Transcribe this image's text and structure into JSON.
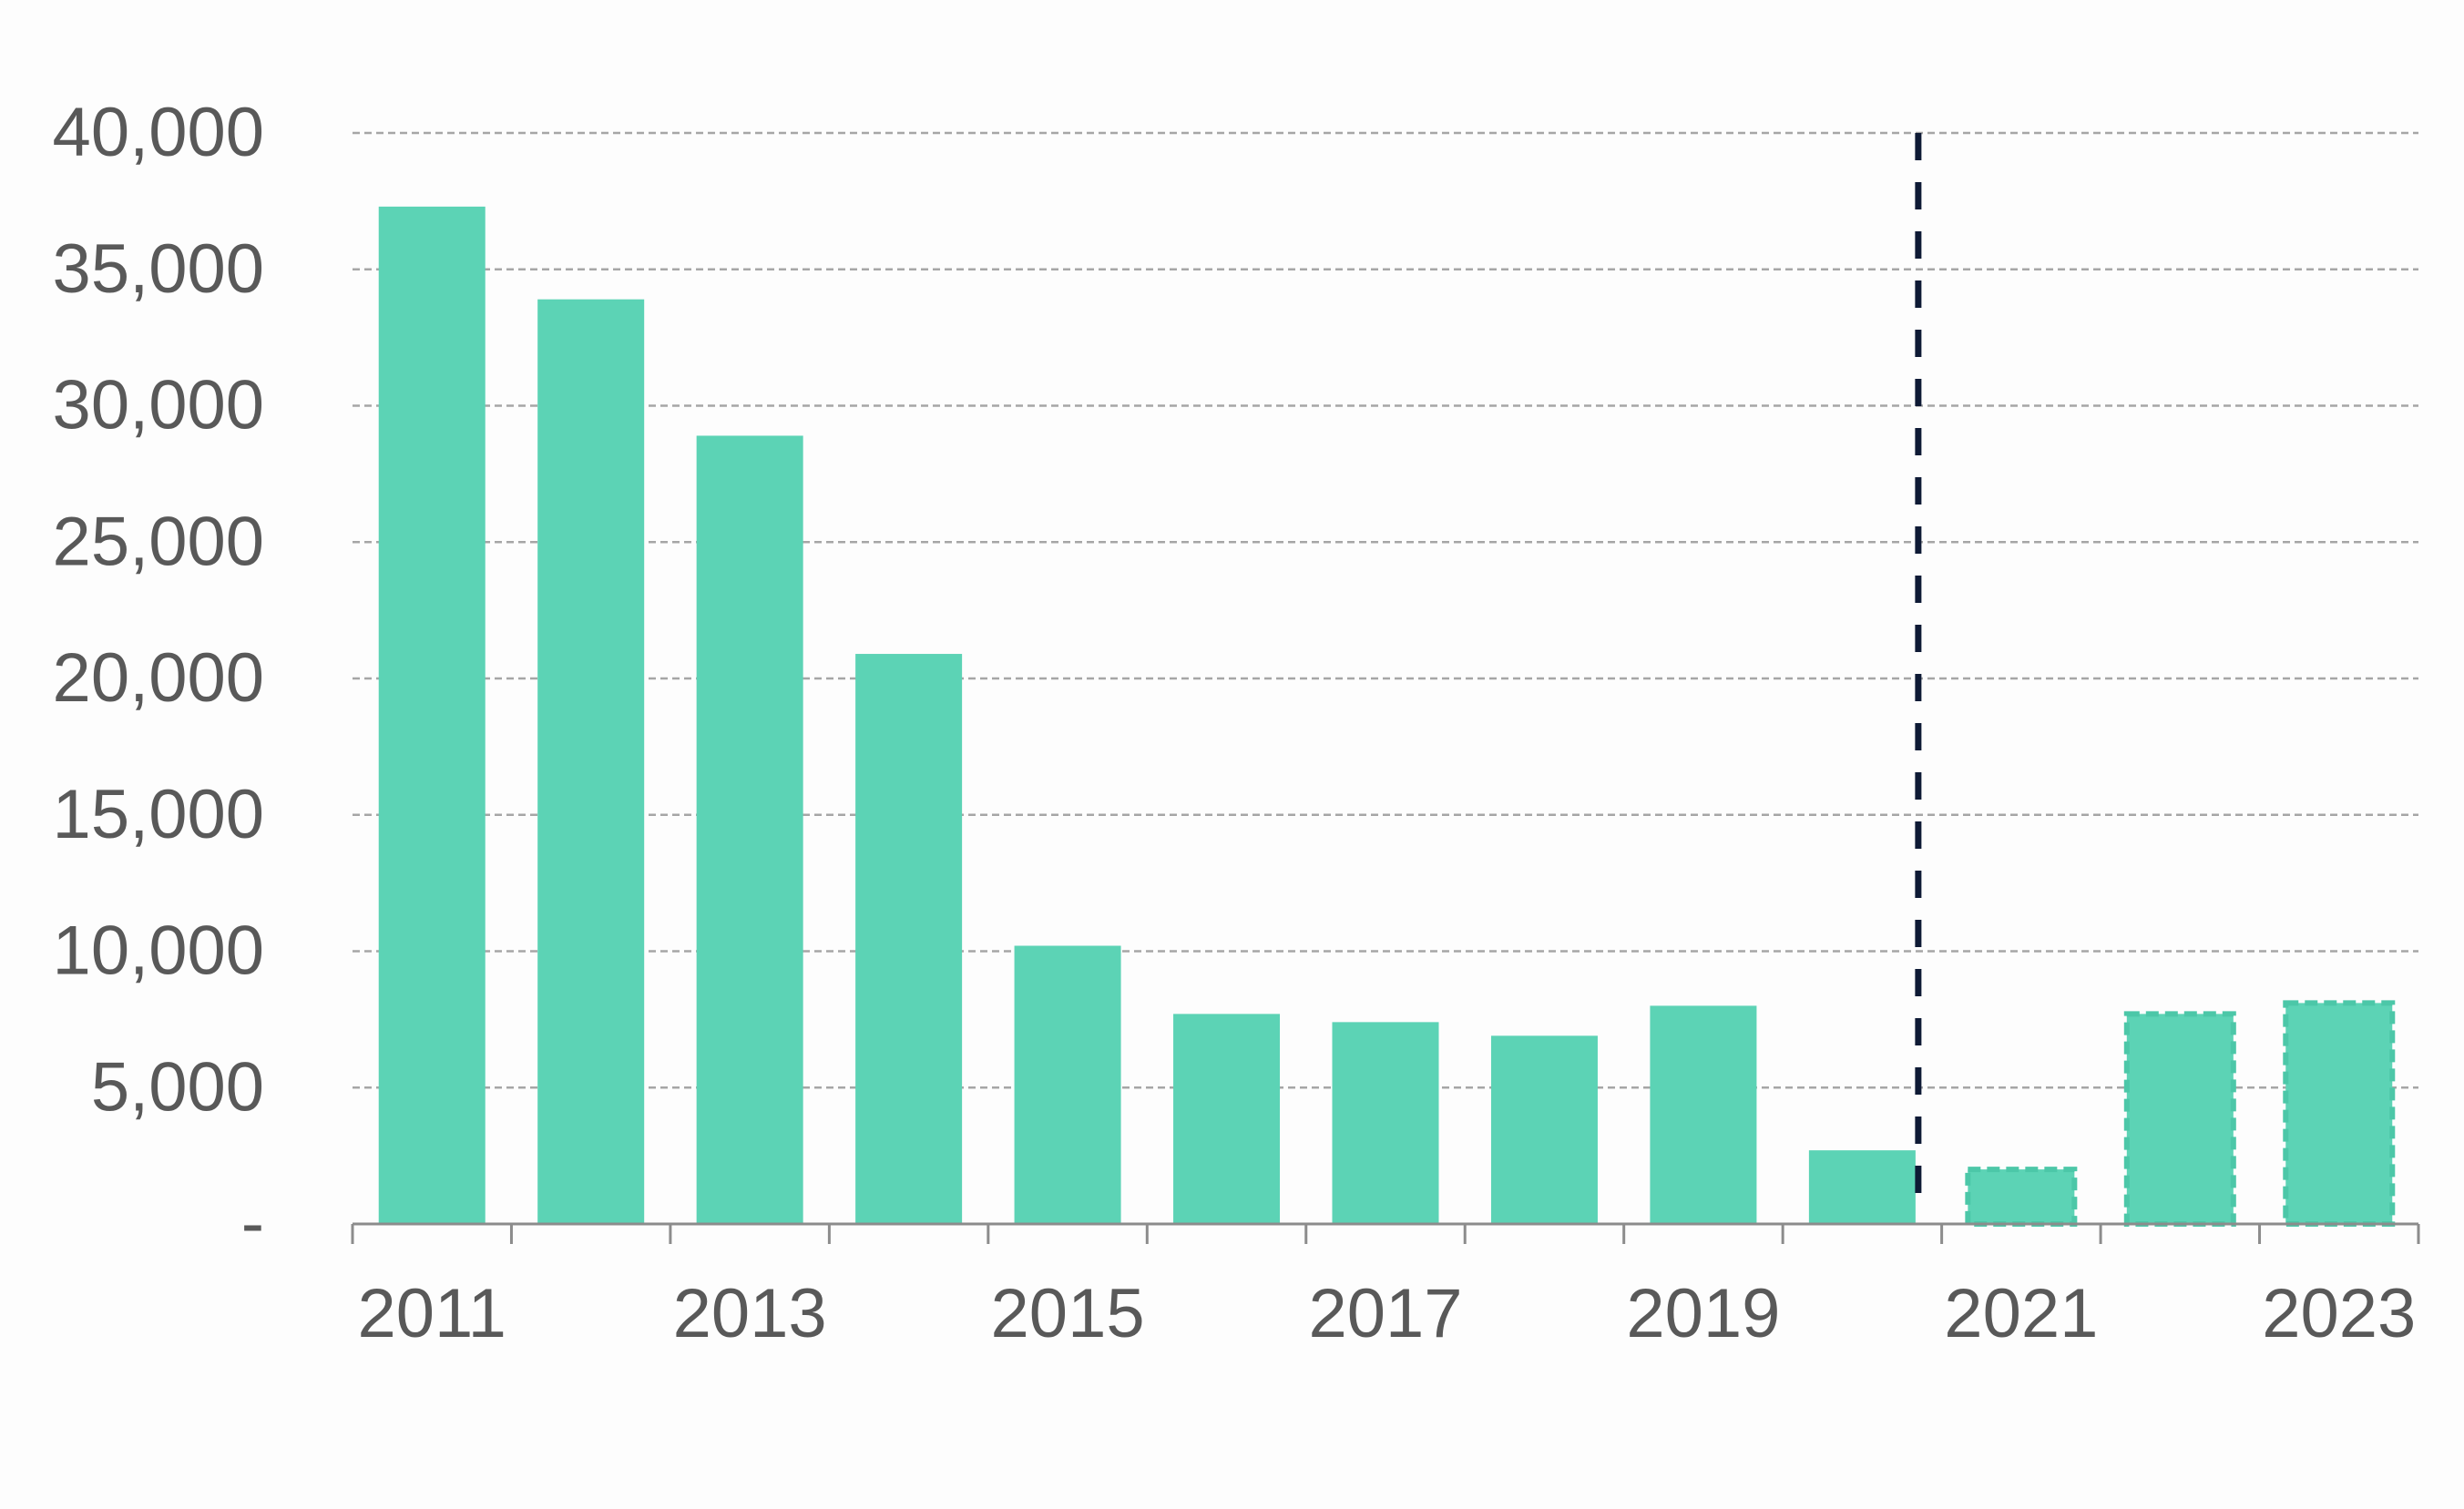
{
  "chart_data": {
    "type": "bar",
    "categories": [
      "2011",
      "2012",
      "2013",
      "2014",
      "2015",
      "2016",
      "2017",
      "2018",
      "2019",
      "2020",
      "2021",
      "2022",
      "2023"
    ],
    "values": [
      37300,
      33900,
      28900,
      20900,
      10200,
      7700,
      7400,
      6900,
      8000,
      2700,
      2000,
      7700,
      8100
    ],
    "projected": [
      false,
      false,
      false,
      false,
      false,
      false,
      false,
      false,
      false,
      false,
      true,
      true,
      true
    ],
    "x_tick_labels": [
      "2011",
      "",
      "2013",
      "",
      "2015",
      "",
      "2017",
      "",
      "2019",
      "",
      "2021",
      "",
      "2023"
    ],
    "y_tick_labels": [
      "-",
      "5,000",
      "10,000",
      "15,000",
      "20,000",
      "25,000",
      "30,000",
      "35,000",
      "40,000"
    ],
    "ylim": [
      0,
      40000
    ],
    "ystep": 5000,
    "grid": true,
    "grid_style": "dashed",
    "divider_after_category": "2020",
    "title": "",
    "xlabel": "",
    "ylabel": "",
    "colors": {
      "bar": "#5cd3b5",
      "bar_projected_border": "#4cc7a8",
      "grid": "#a6a6a6",
      "axis": "#8c8c8c",
      "tick_text": "#595959",
      "divider": "#0e1a35"
    }
  }
}
